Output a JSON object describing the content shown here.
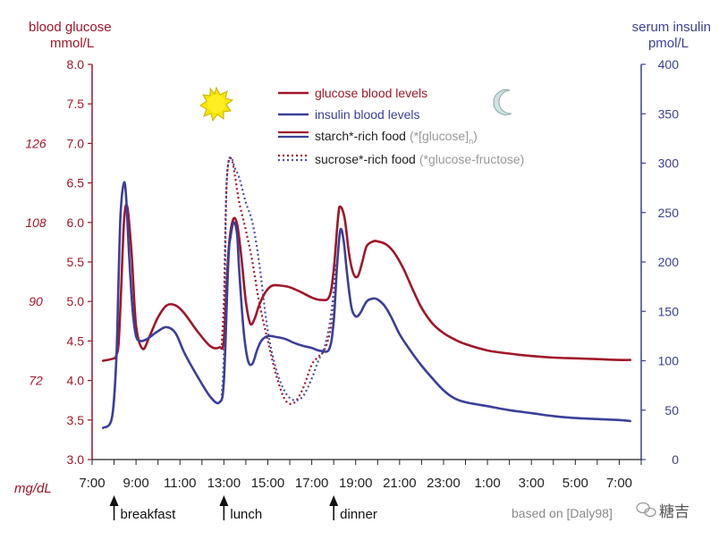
{
  "chart_data": {
    "type": "line",
    "left_axis": {
      "title_line1": "blood glucose",
      "title_line2": "mmol/L",
      "min": 3.0,
      "max": 8.0,
      "ticks": [
        3.0,
        3.5,
        4.0,
        4.5,
        5.0,
        5.5,
        6.0,
        6.5,
        7.0,
        7.5,
        8.0
      ],
      "tick_labels": [
        "3.0",
        "3.5",
        "4.0",
        "4.5",
        "5.0",
        "5.5",
        "6.0",
        "6.5",
        "7.0",
        "7.5",
        "8.0"
      ],
      "color": "#a0162a"
    },
    "mgdl_axis": {
      "unit_label": "mg/dL",
      "labels": [
        {
          "mmol": 4.0,
          "text": "72"
        },
        {
          "mmol": 5.0,
          "text": "90"
        },
        {
          "mmol": 6.0,
          "text": "108"
        },
        {
          "mmol": 7.0,
          "text": "126"
        }
      ]
    },
    "right_axis": {
      "title_line1": "serum insulin",
      "title_line2": "pmol/L",
      "min": 0,
      "max": 400,
      "ticks": [
        0,
        50,
        100,
        150,
        200,
        250,
        300,
        350,
        400
      ],
      "tick_labels": [
        "0",
        "50",
        "100",
        "150",
        "200",
        "250",
        "300",
        "350",
        "400"
      ],
      "color": "#3b3f99"
    },
    "x_axis": {
      "min": 7,
      "max": 32,
      "tick_labels": [
        {
          "hour": 7,
          "label": "7:00"
        },
        {
          "hour": 9,
          "label": "9:00"
        },
        {
          "hour": 11,
          "label": "11:00"
        },
        {
          "hour": 13,
          "label": "13:00"
        },
        {
          "hour": 15,
          "label": "15:00"
        },
        {
          "hour": 17,
          "label": "17:00"
        },
        {
          "hour": 19,
          "label": "19:00"
        },
        {
          "hour": 21,
          "label": "21:00"
        },
        {
          "hour": 23,
          "label": "23:00"
        },
        {
          "hour": 25,
          "label": "1:00"
        },
        {
          "hour": 27,
          "label": "3:00"
        },
        {
          "hour": 29,
          "label": "5:00"
        },
        {
          "hour": 31,
          "label": "7:00"
        }
      ]
    },
    "meals": [
      {
        "hour": 8,
        "label": "breakfast"
      },
      {
        "hour": 13,
        "label": "lunch"
      },
      {
        "hour": 18,
        "label": "dinner"
      }
    ],
    "legend": {
      "position": "top-center",
      "items": [
        {
          "text": "glucose blood levels",
          "style": "solid",
          "color": "#a0162a"
        },
        {
          "text": "insulin blood levels",
          "style": "solid",
          "color": "#3b3f99"
        },
        {
          "text": "starch*-rich food",
          "note": "(*[glucose]",
          "sub": "n",
          "note_end": ")",
          "style": "solid-pair"
        },
        {
          "text": "sucrose*-rich food",
          "note": "(*glucose-fructose)",
          "style": "dotted-pair"
        }
      ]
    },
    "series": [
      {
        "name": "glucose blood levels",
        "axis": "left",
        "color": "#a0162a",
        "style": "solid",
        "x": [
          7.5,
          8.0,
          8.1,
          8.2,
          8.3,
          8.45,
          8.6,
          8.8,
          9.0,
          9.3,
          9.6,
          10.0,
          10.4,
          10.8,
          11.2,
          11.8,
          12.4,
          12.8,
          13.0,
          13.2,
          13.4,
          13.6,
          13.8,
          14.0,
          14.2,
          14.4,
          14.6,
          14.9,
          15.2,
          15.6,
          16.0,
          16.5,
          17.0,
          17.4,
          17.8,
          18.0,
          18.2,
          18.3,
          18.5,
          18.7,
          18.9,
          19.1,
          19.3,
          19.5,
          19.8,
          20.0,
          20.4,
          20.8,
          21.2,
          21.6,
          22.0,
          22.5,
          23.0,
          23.5,
          24.0,
          25.0,
          26.0,
          27.0,
          28.0,
          29.0,
          30.0,
          31.0,
          31.5
        ],
        "y": [
          4.25,
          4.28,
          4.32,
          4.45,
          5.0,
          6.0,
          6.2,
          5.6,
          4.7,
          4.4,
          4.55,
          4.8,
          4.95,
          4.95,
          4.85,
          4.62,
          4.43,
          4.42,
          4.52,
          5.6,
          6.02,
          5.98,
          5.55,
          5.0,
          4.72,
          4.78,
          4.95,
          5.12,
          5.2,
          5.2,
          5.18,
          5.12,
          5.05,
          5.02,
          5.06,
          5.4,
          6.07,
          6.2,
          6.05,
          5.6,
          5.35,
          5.32,
          5.5,
          5.7,
          5.76,
          5.76,
          5.72,
          5.6,
          5.4,
          5.15,
          4.92,
          4.72,
          4.6,
          4.52,
          4.46,
          4.38,
          4.34,
          4.31,
          4.29,
          4.28,
          4.27,
          4.26,
          4.26
        ]
      },
      {
        "name": "insulin blood levels",
        "axis": "right",
        "color": "#3b3f99",
        "style": "solid",
        "x": [
          7.5,
          7.9,
          8.1,
          8.2,
          8.3,
          8.45,
          8.55,
          8.7,
          8.85,
          9.0,
          9.2,
          9.5,
          10.0,
          10.4,
          10.8,
          11.2,
          11.8,
          12.4,
          12.8,
          13.0,
          13.2,
          13.3,
          13.45,
          13.6,
          13.7,
          13.9,
          14.1,
          14.3,
          14.5,
          14.7,
          15.0,
          15.4,
          15.8,
          16.2,
          16.6,
          17.0,
          17.4,
          17.8,
          18.0,
          18.15,
          18.3,
          18.45,
          18.6,
          18.8,
          19.0,
          19.2,
          19.5,
          19.8,
          20.0,
          20.3,
          20.6,
          21.0,
          21.5,
          22.0,
          22.5,
          23.0,
          23.5,
          24.0,
          25.0,
          26.0,
          27.0,
          28.0,
          29.0,
          30.0,
          31.0,
          31.5
        ],
        "y": [
          32,
          42,
          100,
          180,
          250,
          280,
          265,
          200,
          150,
          125,
          120,
          122,
          130,
          134,
          128,
          108,
          84,
          63,
          58,
          80,
          200,
          225,
          240,
          228,
          190,
          130,
          100,
          97,
          110,
          120,
          125,
          124,
          122,
          118,
          115,
          113,
          110,
          112,
          140,
          195,
          232,
          222,
          190,
          155,
          145,
          148,
          160,
          163,
          162,
          156,
          145,
          127,
          110,
          95,
          82,
          70,
          62,
          58,
          54,
          50,
          47,
          44,
          42,
          41,
          40,
          39
        ]
      },
      {
        "name": "starch*-rich food",
        "axis": "left",
        "color": "#a0162a",
        "style": "dotted",
        "x": [
          12.9,
          13.0,
          13.1,
          13.2,
          13.35,
          13.5,
          13.7,
          14.0,
          14.3,
          14.6,
          15.0,
          15.4,
          15.8,
          16.2,
          16.6,
          17.0,
          17.3,
          17.6,
          17.9,
          18.1
        ],
        "y": [
          4.45,
          5.0,
          6.3,
          6.75,
          6.8,
          6.6,
          6.25,
          5.9,
          5.5,
          5.0,
          4.5,
          4.05,
          3.75,
          3.72,
          3.9,
          4.2,
          4.3,
          4.4,
          4.7,
          5.2
        ]
      },
      {
        "name": "sucrose*-rich food",
        "axis": "right",
        "color": "#4d50a0",
        "style": "dotted",
        "x": [
          12.9,
          13.0,
          13.1,
          13.2,
          13.35,
          13.5,
          13.7,
          14.0,
          14.3,
          14.6,
          15.0,
          15.4,
          15.8,
          16.2,
          16.6,
          17.0,
          17.3,
          17.6,
          17.9,
          18.1
        ],
        "y": [
          65,
          110,
          260,
          300,
          305,
          295,
          285,
          260,
          240,
          200,
          130,
          90,
          68,
          60,
          64,
          82,
          100,
          115,
          150,
          200
        ]
      }
    ],
    "source_note": "based on [Daly98]",
    "watermark_text": "糖吉"
  }
}
